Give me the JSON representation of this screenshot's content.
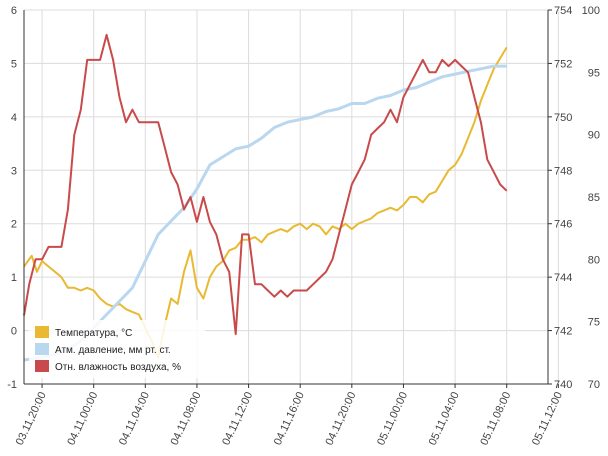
{
  "chart_data": {
    "type": "line",
    "title": "",
    "x_ticks": [
      "03.11,20:00",
      "04.11,00:00",
      "04.11,04:00",
      "04.11,08:00",
      "04.11,12:00",
      "04.11,16:00",
      "04.11,20:00",
      "05.11,00:00",
      "05.11,04:00",
      "05.11,08:00",
      "05.11,12:00"
    ],
    "xlim_hours": [
      -1.4,
      39.2
    ],
    "x_unit": "hours since 03.11,20:00",
    "axes": {
      "left": {
        "ylim": [
          -1,
          6
        ],
        "ticks": [
          "-1",
          "0",
          "1",
          "2",
          "3",
          "4",
          "5",
          "6"
        ]
      },
      "right1": {
        "ylim": [
          740,
          754
        ],
        "ticks": [
          "740",
          "742",
          "744",
          "746",
          "748",
          "750",
          "752",
          "754"
        ]
      },
      "right2": {
        "ylim": [
          70,
          100
        ],
        "ticks": [
          "70",
          "75",
          "80",
          "85",
          "90",
          "95",
          "100"
        ]
      }
    },
    "grid": true,
    "legend_position": "bottom-left",
    "series": [
      {
        "name": "Температура, °C",
        "axis": "left",
        "color": "#e8b931",
        "points": [
          [
            -1.4,
            1.2
          ],
          [
            -0.8,
            1.4
          ],
          [
            -0.4,
            1.1
          ],
          [
            0,
            1.3
          ],
          [
            0.5,
            1.2
          ],
          [
            1,
            1.1
          ],
          [
            1.5,
            1.0
          ],
          [
            2,
            0.8
          ],
          [
            2.5,
            0.8
          ],
          [
            3,
            0.75
          ],
          [
            3.5,
            0.8
          ],
          [
            4,
            0.75
          ],
          [
            4.5,
            0.6
          ],
          [
            5,
            0.5
          ],
          [
            5.5,
            0.45
          ],
          [
            6,
            0.5
          ],
          [
            6.5,
            0.4
          ],
          [
            7,
            0.35
          ],
          [
            7.5,
            0.3
          ],
          [
            8,
            0.05
          ],
          [
            8.5,
            -0.2
          ],
          [
            9,
            -0.5
          ],
          [
            9.5,
            0.1
          ],
          [
            10,
            0.6
          ],
          [
            10.5,
            0.5
          ],
          [
            11,
            1.1
          ],
          [
            11.5,
            1.5
          ],
          [
            12,
            0.8
          ],
          [
            12.5,
            0.6
          ],
          [
            13,
            1.0
          ],
          [
            13.5,
            1.2
          ],
          [
            14,
            1.3
          ],
          [
            14.5,
            1.5
          ],
          [
            15,
            1.55
          ],
          [
            15.5,
            1.7
          ],
          [
            16,
            1.7
          ],
          [
            16.5,
            1.75
          ],
          [
            17,
            1.65
          ],
          [
            17.5,
            1.8
          ],
          [
            18,
            1.85
          ],
          [
            18.5,
            1.9
          ],
          [
            19,
            1.85
          ],
          [
            19.5,
            1.95
          ],
          [
            20,
            2.0
          ],
          [
            20.5,
            1.9
          ],
          [
            21,
            2.0
          ],
          [
            21.5,
            1.95
          ],
          [
            22,
            1.8
          ],
          [
            22.5,
            1.95
          ],
          [
            23,
            1.9
          ],
          [
            23.5,
            2.0
          ],
          [
            24,
            1.9
          ],
          [
            24.5,
            2.0
          ],
          [
            25,
            2.05
          ],
          [
            25.5,
            2.1
          ],
          [
            26,
            2.2
          ],
          [
            26.5,
            2.25
          ],
          [
            27,
            2.3
          ],
          [
            27.5,
            2.25
          ],
          [
            28,
            2.35
          ],
          [
            28.5,
            2.5
          ],
          [
            29,
            2.5
          ],
          [
            29.5,
            2.4
          ],
          [
            30,
            2.55
          ],
          [
            30.5,
            2.6
          ],
          [
            31,
            2.8
          ],
          [
            31.5,
            3.0
          ],
          [
            32,
            3.1
          ],
          [
            32.5,
            3.3
          ],
          [
            33,
            3.6
          ],
          [
            33.5,
            3.9
          ],
          [
            34,
            4.3
          ],
          [
            34.5,
            4.6
          ],
          [
            35,
            4.9
          ],
          [
            35.5,
            5.1
          ],
          [
            36,
            5.3
          ]
        ]
      },
      {
        "name": "Атм. давление, мм рт. ст.",
        "axis": "right1",
        "color": "#b9d7ef",
        "points": [
          [
            -1.4,
            740.9
          ],
          [
            0,
            741.0
          ],
          [
            1,
            741.1
          ],
          [
            2,
            741.3
          ],
          [
            3,
            741.6
          ],
          [
            4,
            742.1
          ],
          [
            5,
            742.6
          ],
          [
            6,
            743.1
          ],
          [
            7,
            743.6
          ],
          [
            8,
            744.6
          ],
          [
            9,
            745.6
          ],
          [
            10,
            746.1
          ],
          [
            11,
            746.6
          ],
          [
            12,
            747.3
          ],
          [
            13,
            748.2
          ],
          [
            14,
            748.5
          ],
          [
            15,
            748.8
          ],
          [
            16,
            748.9
          ],
          [
            17,
            749.2
          ],
          [
            18,
            749.6
          ],
          [
            19,
            749.8
          ],
          [
            20,
            749.9
          ],
          [
            21,
            750.0
          ],
          [
            22,
            750.2
          ],
          [
            23,
            750.3
          ],
          [
            24,
            750.5
          ],
          [
            25,
            750.5
          ],
          [
            26,
            750.7
          ],
          [
            27,
            750.8
          ],
          [
            28,
            751.0
          ],
          [
            29,
            751.1
          ],
          [
            30,
            751.3
          ],
          [
            31,
            751.5
          ],
          [
            32,
            751.6
          ],
          [
            33,
            751.7
          ],
          [
            34,
            751.8
          ],
          [
            35,
            751.9
          ],
          [
            36,
            751.9
          ]
        ]
      },
      {
        "name": "Отн. влажность воздуха, %",
        "axis": "right2",
        "color": "#c94a4a",
        "points": [
          [
            -1.4,
            75.5
          ],
          [
            -1,
            78
          ],
          [
            -0.5,
            80
          ],
          [
            0,
            80
          ],
          [
            0.5,
            81
          ],
          [
            1,
            81
          ],
          [
            1.5,
            81
          ],
          [
            2,
            84
          ],
          [
            2.5,
            90
          ],
          [
            3,
            92
          ],
          [
            3.5,
            96
          ],
          [
            4,
            96
          ],
          [
            4.5,
            96
          ],
          [
            5,
            98
          ],
          [
            5.5,
            96
          ],
          [
            6,
            93
          ],
          [
            6.5,
            91
          ],
          [
            7,
            92
          ],
          [
            7.5,
            91
          ],
          [
            8,
            91
          ],
          [
            8.5,
            91
          ],
          [
            9,
            91
          ],
          [
            9.5,
            89
          ],
          [
            10,
            87
          ],
          [
            10.5,
            86
          ],
          [
            11,
            84
          ],
          [
            11.5,
            85
          ],
          [
            12,
            83
          ],
          [
            12.5,
            85
          ],
          [
            13,
            83
          ],
          [
            13.5,
            82
          ],
          [
            14,
            80
          ],
          [
            14.5,
            79
          ],
          [
            15,
            74
          ],
          [
            15.5,
            82
          ],
          [
            16,
            82
          ],
          [
            16.5,
            78
          ],
          [
            17,
            78
          ],
          [
            17.5,
            77.5
          ],
          [
            18,
            77
          ],
          [
            18.5,
            77.5
          ],
          [
            19,
            77
          ],
          [
            19.5,
            77.5
          ],
          [
            20,
            77.5
          ],
          [
            20.5,
            77.5
          ],
          [
            21,
            78
          ],
          [
            21.5,
            78.5
          ],
          [
            22,
            79
          ],
          [
            22.5,
            80
          ],
          [
            23,
            82
          ],
          [
            23.5,
            84
          ],
          [
            24,
            86
          ],
          [
            24.5,
            87
          ],
          [
            25,
            88
          ],
          [
            25.5,
            90
          ],
          [
            26,
            90.5
          ],
          [
            26.5,
            91
          ],
          [
            27,
            92
          ],
          [
            27.5,
            91
          ],
          [
            28,
            93
          ],
          [
            28.5,
            94
          ],
          [
            29,
            95
          ],
          [
            29.5,
            96
          ],
          [
            30,
            95
          ],
          [
            30.5,
            95
          ],
          [
            31,
            96
          ],
          [
            31.5,
            95.5
          ],
          [
            32,
            96
          ],
          [
            32.5,
            95.5
          ],
          [
            33,
            95
          ],
          [
            33.5,
            93
          ],
          [
            34,
            91
          ],
          [
            34.5,
            88
          ],
          [
            35,
            87
          ],
          [
            35.5,
            86
          ],
          [
            36,
            85.5
          ]
        ]
      }
    ]
  }
}
